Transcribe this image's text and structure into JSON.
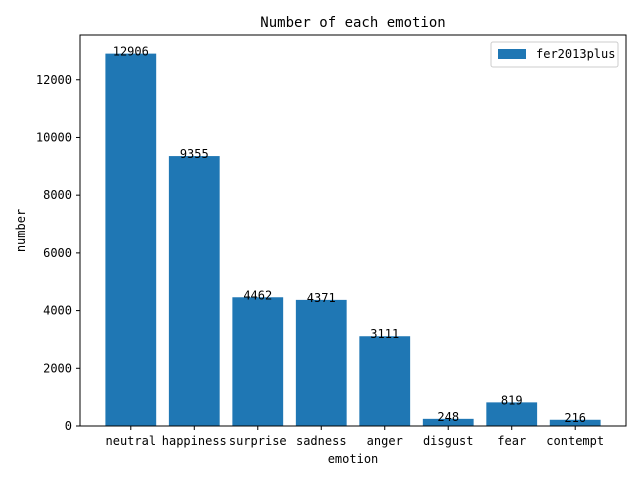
{
  "chart_data": {
    "type": "bar",
    "title": "Number of each emotion",
    "xlabel": "emotion",
    "ylabel": "number",
    "categories": [
      "neutral",
      "happiness",
      "surprise",
      "sadness",
      "anger",
      "disgust",
      "fear",
      "contempt"
    ],
    "series": [
      {
        "name": "fer2013plus",
        "values": [
          12906,
          9355,
          4462,
          4371,
          3111,
          248,
          819,
          216
        ],
        "color": "#1f77b4"
      }
    ],
    "data_labels": [
      "12906",
      "9355",
      "4462",
      "4371",
      "3111",
      "248",
      "819",
      "216"
    ],
    "ylim": [
      0,
      13551.3
    ],
    "yticks": [
      0,
      2000,
      4000,
      6000,
      8000,
      10000,
      12000
    ],
    "grid": false,
    "legend_position": "top-right"
  }
}
